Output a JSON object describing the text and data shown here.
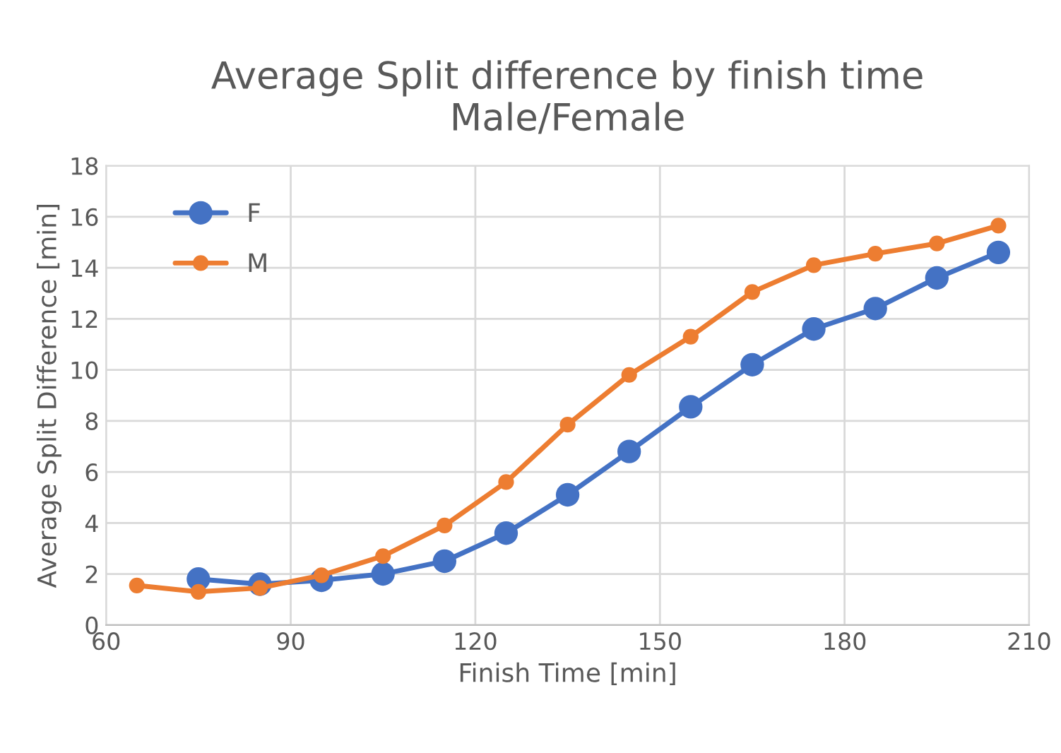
{
  "chart_data": {
    "type": "line",
    "title": "Average Split difference by finish time\nMale/Female",
    "xlabel": "Finish Time [min]",
    "ylabel": "Average Split Difference [min]",
    "xlim": [
      60,
      210
    ],
    "xticks": [
      60,
      90,
      120,
      150,
      180,
      210
    ],
    "ylim": [
      0,
      18
    ],
    "yticks": [
      0,
      2,
      4,
      6,
      8,
      10,
      12,
      14,
      16,
      18
    ],
    "grid": true,
    "legend": "top left",
    "marker": "circle",
    "line_style": "solid",
    "series": [
      {
        "name": "F",
        "color": "#4472c4",
        "x": [
          75,
          85,
          95,
          105,
          115,
          125,
          135,
          145,
          155,
          165,
          175,
          185,
          195,
          205
        ],
        "values": [
          1.8,
          1.6,
          1.75,
          2.0,
          2.5,
          3.6,
          5.1,
          6.8,
          8.55,
          10.2,
          11.6,
          12.4,
          13.6,
          14.6
        ]
      },
      {
        "name": "M",
        "color": "#ed7d31",
        "x": [
          65,
          75,
          85,
          95,
          105,
          115,
          125,
          135,
          145,
          155,
          165,
          175,
          185,
          195,
          205
        ],
        "values": [
          1.55,
          1.3,
          1.45,
          1.95,
          2.7,
          3.9,
          5.6,
          7.85,
          9.8,
          11.3,
          13.05,
          14.1,
          14.55,
          14.95,
          15.65
        ]
      }
    ]
  }
}
